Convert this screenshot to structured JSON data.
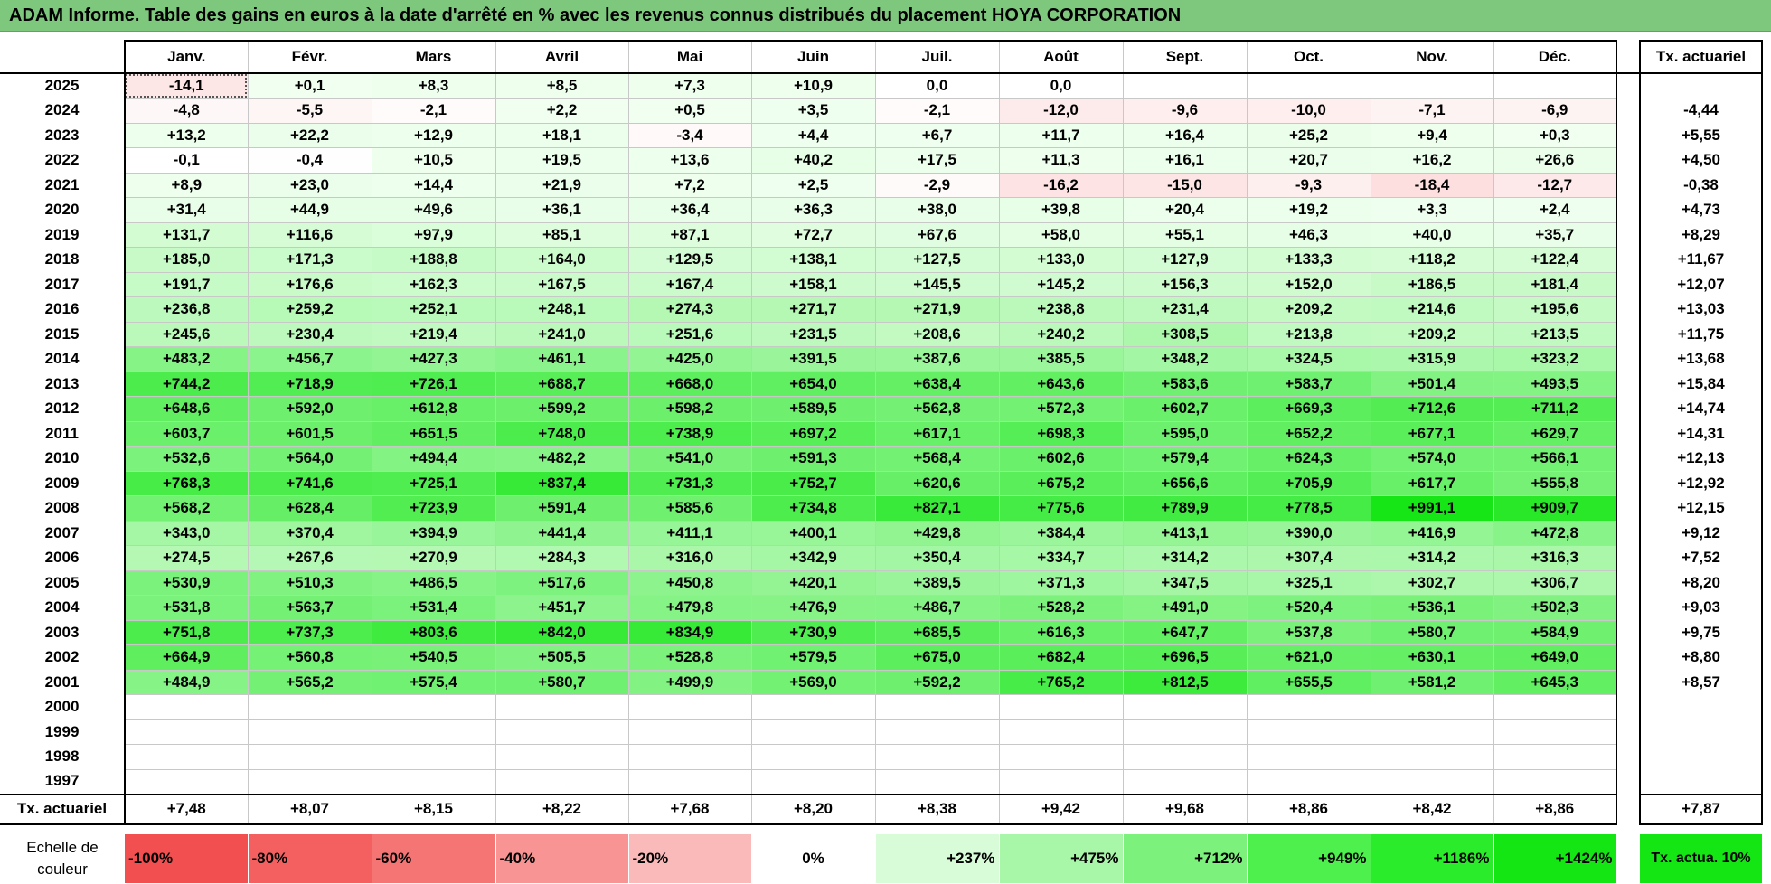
{
  "title": "ADAM Informe. Table des gains en euros à la date d'arrêté en % avec les revenus connus distribués du placement HOYA CORPORATION",
  "months": [
    "Janv.",
    "Févr.",
    "Mars",
    "Avril",
    "Mai",
    "Juin",
    "Juil.",
    "Août",
    "Sept.",
    "Oct.",
    "Nov.",
    "Déc."
  ],
  "tx_header": "Tx. actuariel",
  "rows": [
    {
      "year": "2025",
      "values": [
        "-14,1",
        "+0,1",
        "+8,3",
        "+8,5",
        "+7,3",
        "+10,9",
        "0,0",
        "0,0",
        "",
        "",
        "",
        ""
      ],
      "tx": ""
    },
    {
      "year": "2024",
      "values": [
        "-4,8",
        "-5,5",
        "-2,1",
        "+2,2",
        "+0,5",
        "+3,5",
        "-2,1",
        "-12,0",
        "-9,6",
        "-10,0",
        "-7,1",
        "-6,9"
      ],
      "tx": "-4,44"
    },
    {
      "year": "2023",
      "values": [
        "+13,2",
        "+22,2",
        "+12,9",
        "+18,1",
        "-3,4",
        "+4,4",
        "+6,7",
        "+11,7",
        "+16,4",
        "+25,2",
        "+9,4",
        "+0,3"
      ],
      "tx": "+5,55"
    },
    {
      "year": "2022",
      "values": [
        "-0,1",
        "-0,4",
        "+10,5",
        "+19,5",
        "+13,6",
        "+40,2",
        "+17,5",
        "+11,3",
        "+16,1",
        "+20,7",
        "+16,2",
        "+26,6"
      ],
      "tx": "+4,50"
    },
    {
      "year": "2021",
      "values": [
        "+8,9",
        "+23,0",
        "+14,4",
        "+21,9",
        "+7,2",
        "+2,5",
        "-2,9",
        "-16,2",
        "-15,0",
        "-9,3",
        "-18,4",
        "-12,7"
      ],
      "tx": "-0,38"
    },
    {
      "year": "2020",
      "values": [
        "+31,4",
        "+44,9",
        "+49,6",
        "+36,1",
        "+36,4",
        "+36,3",
        "+38,0",
        "+39,8",
        "+20,4",
        "+19,2",
        "+3,3",
        "+2,4"
      ],
      "tx": "+4,73"
    },
    {
      "year": "2019",
      "values": [
        "+131,7",
        "+116,6",
        "+97,9",
        "+85,1",
        "+87,1",
        "+72,7",
        "+67,6",
        "+58,0",
        "+55,1",
        "+46,3",
        "+40,0",
        "+35,7"
      ],
      "tx": "+8,29"
    },
    {
      "year": "2018",
      "values": [
        "+185,0",
        "+171,3",
        "+188,8",
        "+164,0",
        "+129,5",
        "+138,1",
        "+127,5",
        "+133,0",
        "+127,9",
        "+133,3",
        "+118,2",
        "+122,4"
      ],
      "tx": "+11,67"
    },
    {
      "year": "2017",
      "values": [
        "+191,7",
        "+176,6",
        "+162,3",
        "+167,5",
        "+167,4",
        "+158,1",
        "+145,5",
        "+145,2",
        "+156,3",
        "+152,0",
        "+186,5",
        "+181,4"
      ],
      "tx": "+12,07"
    },
    {
      "year": "2016",
      "values": [
        "+236,8",
        "+259,2",
        "+252,1",
        "+248,1",
        "+274,3",
        "+271,7",
        "+271,9",
        "+238,8",
        "+231,4",
        "+209,2",
        "+214,6",
        "+195,6"
      ],
      "tx": "+13,03"
    },
    {
      "year": "2015",
      "values": [
        "+245,6",
        "+230,4",
        "+219,4",
        "+241,0",
        "+251,6",
        "+231,5",
        "+208,6",
        "+240,2",
        "+308,5",
        "+213,8",
        "+209,2",
        "+213,5"
      ],
      "tx": "+11,75"
    },
    {
      "year": "2014",
      "values": [
        "+483,2",
        "+456,7",
        "+427,3",
        "+461,1",
        "+425,0",
        "+391,5",
        "+387,6",
        "+385,5",
        "+348,2",
        "+324,5",
        "+315,9",
        "+323,2"
      ],
      "tx": "+13,68"
    },
    {
      "year": "2013",
      "values": [
        "+744,2",
        "+718,9",
        "+726,1",
        "+688,7",
        "+668,0",
        "+654,0",
        "+638,4",
        "+643,6",
        "+583,6",
        "+583,7",
        "+501,4",
        "+493,5"
      ],
      "tx": "+15,84"
    },
    {
      "year": "2012",
      "values": [
        "+648,6",
        "+592,0",
        "+612,8",
        "+599,2",
        "+598,2",
        "+589,5",
        "+562,8",
        "+572,3",
        "+602,7",
        "+669,3",
        "+712,6",
        "+711,2"
      ],
      "tx": "+14,74"
    },
    {
      "year": "2011",
      "values": [
        "+603,7",
        "+601,5",
        "+651,5",
        "+748,0",
        "+738,9",
        "+697,2",
        "+617,1",
        "+698,3",
        "+595,0",
        "+652,2",
        "+677,1",
        "+629,7"
      ],
      "tx": "+14,31"
    },
    {
      "year": "2010",
      "values": [
        "+532,6",
        "+564,0",
        "+494,4",
        "+482,2",
        "+541,0",
        "+591,3",
        "+568,4",
        "+602,6",
        "+579,4",
        "+624,3",
        "+574,0",
        "+566,1"
      ],
      "tx": "+12,13"
    },
    {
      "year": "2009",
      "values": [
        "+768,3",
        "+741,6",
        "+725,1",
        "+837,4",
        "+731,3",
        "+752,7",
        "+620,6",
        "+675,2",
        "+656,6",
        "+705,9",
        "+617,7",
        "+555,8"
      ],
      "tx": "+12,92"
    },
    {
      "year": "2008",
      "values": [
        "+568,2",
        "+628,4",
        "+723,9",
        "+591,4",
        "+585,6",
        "+734,8",
        "+827,1",
        "+775,6",
        "+789,9",
        "+778,5",
        "+991,1",
        "+909,7"
      ],
      "tx": "+12,15"
    },
    {
      "year": "2007",
      "values": [
        "+343,0",
        "+370,4",
        "+394,9",
        "+441,4",
        "+411,1",
        "+400,1",
        "+429,8",
        "+384,4",
        "+413,1",
        "+390,0",
        "+416,9",
        "+472,8"
      ],
      "tx": "+9,12"
    },
    {
      "year": "2006",
      "values": [
        "+274,5",
        "+267,6",
        "+270,9",
        "+284,3",
        "+316,0",
        "+342,9",
        "+350,4",
        "+334,7",
        "+314,2",
        "+307,4",
        "+314,2",
        "+316,3"
      ],
      "tx": "+7,52"
    },
    {
      "year": "2005",
      "values": [
        "+530,9",
        "+510,3",
        "+486,5",
        "+517,6",
        "+450,8",
        "+420,1",
        "+389,5",
        "+371,3",
        "+347,5",
        "+325,1",
        "+302,7",
        "+306,7"
      ],
      "tx": "+8,20"
    },
    {
      "year": "2004",
      "values": [
        "+531,8",
        "+563,7",
        "+531,4",
        "+451,7",
        "+479,8",
        "+476,9",
        "+486,7",
        "+528,2",
        "+491,0",
        "+520,4",
        "+536,1",
        "+502,3"
      ],
      "tx": "+9,03"
    },
    {
      "year": "2003",
      "values": [
        "+751,8",
        "+737,3",
        "+803,6",
        "+842,0",
        "+834,9",
        "+730,9",
        "+685,5",
        "+616,3",
        "+647,7",
        "+537,8",
        "+580,7",
        "+584,9"
      ],
      "tx": "+9,75"
    },
    {
      "year": "2002",
      "values": [
        "+664,9",
        "+560,8",
        "+540,5",
        "+505,5",
        "+528,8",
        "+579,5",
        "+675,0",
        "+682,4",
        "+696,5",
        "+621,0",
        "+630,1",
        "+649,0"
      ],
      "tx": "+8,80"
    },
    {
      "year": "2001",
      "values": [
        "+484,9",
        "+565,2",
        "+575,4",
        "+580,7",
        "+499,9",
        "+569,0",
        "+592,2",
        "+765,2",
        "+812,5",
        "+655,5",
        "+581,2",
        "+645,3"
      ],
      "tx": "+8,57"
    },
    {
      "year": "2000",
      "values": [
        "",
        "",
        "",
        "",
        "",
        "",
        "",
        "",
        "",
        "",
        "",
        ""
      ],
      "tx": ""
    },
    {
      "year": "1999",
      "values": [
        "",
        "",
        "",
        "",
        "",
        "",
        "",
        "",
        "",
        "",
        "",
        ""
      ],
      "tx": ""
    },
    {
      "year": "1998",
      "values": [
        "",
        "",
        "",
        "",
        "",
        "",
        "",
        "",
        "",
        "",
        "",
        ""
      ],
      "tx": ""
    },
    {
      "year": "1997",
      "values": [
        "",
        "",
        "",
        "",
        "",
        "",
        "",
        "",
        "",
        "",
        "",
        ""
      ],
      "tx": ""
    }
  ],
  "footer": {
    "label": "Tx. actuariel",
    "values": [
      "+7,48",
      "+8,07",
      "+8,15",
      "+8,22",
      "+7,68",
      "+8,20",
      "+8,38",
      "+9,42",
      "+9,68",
      "+8,86",
      "+8,42",
      "+8,86"
    ],
    "tx": "+7,87"
  },
  "scale": {
    "label": "Echelle de couleur",
    "items": [
      {
        "text": "-100%",
        "color": "#f25050",
        "align": "left"
      },
      {
        "text": "-80%",
        "color": "#f46060",
        "align": "left"
      },
      {
        "text": "-60%",
        "color": "#f57474",
        "align": "left"
      },
      {
        "text": "-40%",
        "color": "#f89494",
        "align": "left"
      },
      {
        "text": "-20%",
        "color": "#fbbaba",
        "align": "left"
      },
      {
        "text": "0%",
        "color": "#ffffff",
        "align": "center"
      },
      {
        "text": "+237%",
        "color": "#d8fcd8",
        "align": "right"
      },
      {
        "text": "+475%",
        "color": "#a8f6a8",
        "align": "right"
      },
      {
        "text": "+712%",
        "color": "#7cf27c",
        "align": "right"
      },
      {
        "text": "+949%",
        "color": "#4df04d",
        "align": "right"
      },
      {
        "text": "+1186%",
        "color": "#2bec2b",
        "align": "right"
      },
      {
        "text": "+1424%",
        "color": "#14e614",
        "align": "right"
      }
    ],
    "tx_label": "Tx. actua. 10%",
    "tx_color": "#14e614"
  }
}
